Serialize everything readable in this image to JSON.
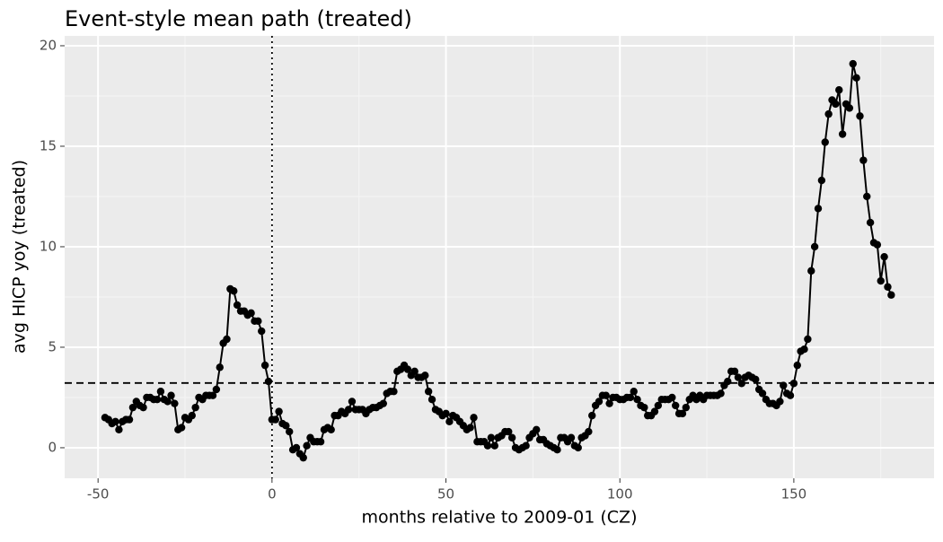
{
  "chart_data": {
    "type": "line",
    "title": "Event-style mean path (treated)",
    "x_label": "months relative to 2009-01 (CZ)",
    "y_label": "avg HICP yoy (treated)",
    "xlim": [
      -59.6,
      190.3
    ],
    "ylim": [
      -1.52,
      20.49
    ],
    "xticks": [
      -50,
      0,
      50,
      100,
      150
    ],
    "yticks": [
      0,
      5,
      10,
      15,
      20
    ],
    "xminor": [
      -25,
      25,
      75,
      125,
      175
    ],
    "yminor": [
      2.5,
      7.5,
      12.5,
      17.5
    ],
    "grid": true,
    "hline": 3.22,
    "vline": 0,
    "x": [
      -48,
      -47,
      -46,
      -45,
      -44,
      -43,
      -42,
      -41,
      -40,
      -39,
      -38,
      -37,
      -36,
      -35,
      -34,
      -33,
      -32,
      -31,
      -30,
      -29,
      -28,
      -27,
      -26,
      -25,
      -24,
      -23,
      -22,
      -21,
      -20,
      -19,
      -18,
      -17,
      -16,
      -15,
      -14,
      -13,
      -12,
      -11,
      -10,
      -9,
      -8,
      -7,
      -6,
      -5,
      -4,
      -3,
      -2,
      -1,
      0,
      1,
      2,
      3,
      4,
      5,
      6,
      7,
      8,
      9,
      10,
      11,
      12,
      13,
      14,
      15,
      16,
      17,
      18,
      19,
      20,
      21,
      22,
      23,
      24,
      25,
      26,
      27,
      28,
      29,
      30,
      31,
      32,
      33,
      34,
      35,
      36,
      37,
      38,
      39,
      40,
      41,
      42,
      43,
      44,
      45,
      46,
      47,
      48,
      49,
      50,
      51,
      52,
      53,
      54,
      55,
      56,
      57,
      58,
      59,
      60,
      61,
      62,
      63,
      64,
      65,
      66,
      67,
      68,
      69,
      70,
      71,
      72,
      73,
      74,
      75,
      76,
      77,
      78,
      79,
      80,
      81,
      82,
      83,
      84,
      85,
      86,
      87,
      88,
      89,
      90,
      91,
      92,
      93,
      94,
      95,
      96,
      97,
      98,
      99,
      100,
      101,
      102,
      103,
      104,
      105,
      106,
      107,
      108,
      109,
      110,
      111,
      112,
      113,
      114,
      115,
      116,
      117,
      118,
      119,
      120,
      121,
      122,
      123,
      124,
      125,
      126,
      127,
      128,
      129,
      130,
      131,
      132,
      133,
      134,
      135,
      136,
      137,
      138,
      139,
      140,
      141,
      142,
      143,
      144,
      145,
      146,
      147,
      148,
      149,
      150,
      151,
      152,
      153,
      154,
      155,
      156,
      157,
      158,
      159,
      160,
      161,
      162,
      163,
      164,
      165,
      166,
      167,
      168,
      169,
      170,
      171,
      172,
      173,
      174,
      175,
      176,
      177,
      178
    ],
    "series": [
      {
        "color": "#000000",
        "values": [
          1.5,
          1.4,
          1.2,
          1.3,
          0.9,
          1.3,
          1.4,
          1.4,
          2.0,
          2.3,
          2.1,
          2.0,
          2.5,
          2.5,
          2.4,
          2.4,
          2.8,
          2.4,
          2.3,
          2.6,
          2.2,
          0.9,
          1.0,
          1.5,
          1.4,
          1.6,
          2.0,
          2.5,
          2.4,
          2.6,
          2.6,
          2.6,
          2.9,
          4.0,
          5.2,
          5.4,
          7.9,
          7.8,
          7.1,
          6.8,
          6.8,
          6.6,
          6.7,
          6.3,
          6.3,
          5.8,
          4.1,
          3.3,
          1.4,
          1.4,
          1.8,
          1.2,
          1.1,
          0.8,
          -0.1,
          0.0,
          -0.3,
          -0.5,
          0.1,
          0.5,
          0.3,
          0.3,
          0.3,
          0.9,
          1.0,
          0.9,
          1.6,
          1.6,
          1.8,
          1.7,
          1.9,
          2.3,
          1.9,
          1.9,
          1.9,
          1.7,
          1.9,
          2.0,
          2.0,
          2.1,
          2.2,
          2.7,
          2.8,
          2.8,
          3.8,
          3.9,
          4.1,
          3.9,
          3.6,
          3.8,
          3.5,
          3.5,
          3.6,
          2.8,
          2.4,
          1.9,
          1.8,
          1.6,
          1.7,
          1.3,
          1.6,
          1.5,
          1.3,
          1.1,
          0.9,
          1.0,
          1.5,
          0.3,
          0.3,
          0.3,
          0.1,
          0.5,
          0.1,
          0.5,
          0.6,
          0.8,
          0.8,
          0.5,
          0.0,
          -0.1,
          0.0,
          0.1,
          0.5,
          0.7,
          0.9,
          0.4,
          0.4,
          0.2,
          0.1,
          0.0,
          -0.1,
          0.5,
          0.5,
          0.3,
          0.5,
          0.1,
          0.0,
          0.5,
          0.6,
          0.8,
          1.6,
          2.1,
          2.3,
          2.6,
          2.6,
          2.2,
          2.5,
          2.5,
          2.4,
          2.4,
          2.5,
          2.5,
          2.8,
          2.4,
          2.1,
          2.0,
          1.6,
          1.6,
          1.8,
          2.1,
          2.4,
          2.4,
          2.4,
          2.5,
          2.1,
          1.7,
          1.7,
          2.0,
          2.4,
          2.6,
          2.4,
          2.6,
          2.4,
          2.6,
          2.6,
          2.6,
          2.6,
          2.7,
          3.1,
          3.3,
          3.8,
          3.8,
          3.5,
          3.2,
          3.5,
          3.6,
          3.5,
          3.4,
          2.9,
          2.7,
          2.4,
          2.2,
          2.2,
          2.1,
          2.3,
          3.1,
          2.7,
          2.6,
          3.2,
          4.1,
          4.8,
          4.9,
          5.4,
          8.8,
          10.0,
          11.9,
          13.3,
          15.2,
          16.6,
          17.3,
          17.1,
          17.8,
          15.6,
          17.1,
          16.9,
          19.1,
          18.4,
          16.5,
          14.3,
          12.5,
          11.2,
          10.2,
          10.1,
          8.3,
          9.5,
          8.0,
          7.6
        ]
      }
    ]
  }
}
